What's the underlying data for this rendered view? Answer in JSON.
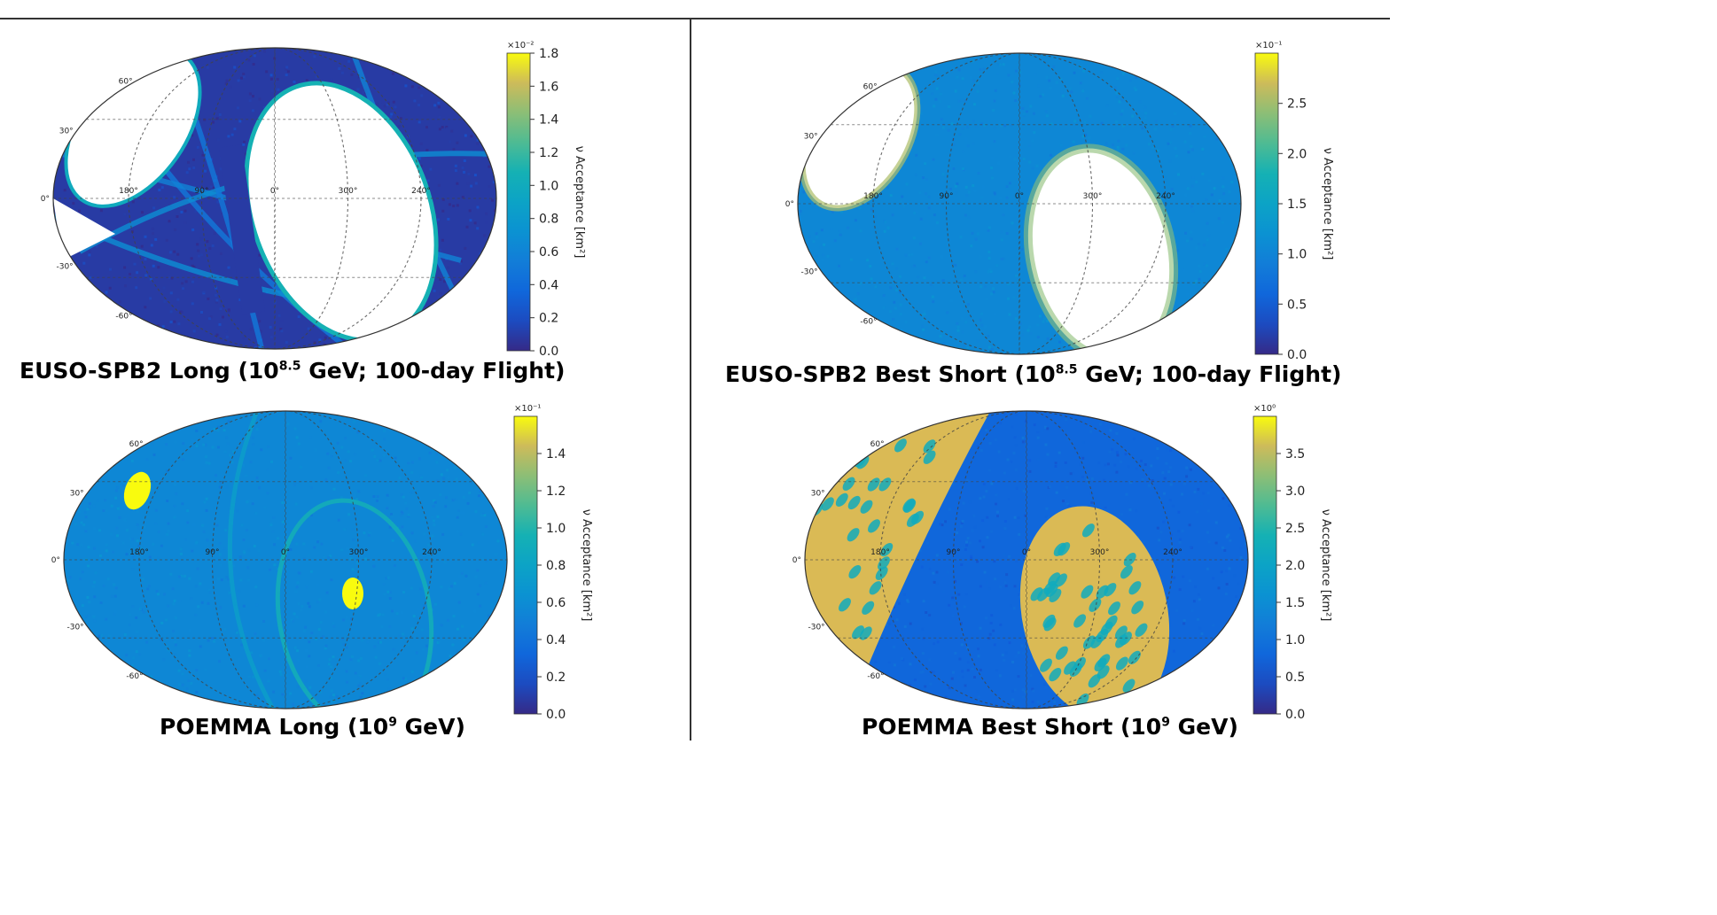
{
  "header": {
    "text": ""
  },
  "chart_data": [
    {
      "type": "heatmap",
      "projection": "mollweide",
      "title": "EUSO-SPB2 Long (10^8.5 GeV; 100-day Flight)",
      "title_parts": {
        "pre": "EUSO-SPB2 Long (10",
        "sup": "8.5",
        "post": " GeV; 100-day Flight)"
      },
      "colorbar": {
        "label": "ν Acceptance [km²]",
        "multiplier": "×10⁻²",
        "range": [
          0,
          1.8
        ],
        "ticks": [
          "0.0",
          "0.2",
          "0.4",
          "0.6",
          "0.8",
          "1.0",
          "1.2",
          "1.4",
          "1.6",
          "1.8"
        ]
      },
      "ra_labels": [
        "180°",
        "90°",
        "0°",
        "300°",
        "240°"
      ],
      "dec_labels": [
        "60°",
        "30°",
        "0°",
        "-30°",
        "-60°"
      ],
      "background_level": 0.05,
      "holes": [
        "upper-left ellipse",
        "large central-right ellipse",
        "left wedge"
      ],
      "grid": true
    },
    {
      "type": "heatmap",
      "projection": "mollweide",
      "title": "EUSO-SPB2 Best Short (10^8.5 GeV; 100-day Flight)",
      "title_parts": {
        "pre": "EUSO-SPB2 Best Short (10",
        "sup": "8.5",
        "post": " GeV; 100-day Flight)"
      },
      "colorbar": {
        "label": "ν Acceptance [km²]",
        "multiplier": "×10⁻¹",
        "range": [
          0,
          3.0
        ],
        "ticks": [
          "0.0",
          "0.5",
          "1.0",
          "1.5",
          "2.0",
          "2.5"
        ]
      },
      "ra_labels": [
        "180°",
        "90°",
        "0°",
        "300°",
        "240°"
      ],
      "dec_labels": [
        "60°",
        "30°",
        "0°",
        "-30°",
        "-60°"
      ],
      "background_level": 0.35,
      "holes": [
        "upper-left ellipse",
        "central-right ellipse"
      ],
      "grid": true
    },
    {
      "type": "heatmap",
      "projection": "mollweide",
      "title": "POEMMA Long (10^9 GeV)",
      "title_parts": {
        "pre": "POEMMA Long (10",
        "sup": "9",
        "post": " GeV)"
      },
      "colorbar": {
        "label": "ν Acceptance [km²]",
        "multiplier": "×10⁻¹",
        "range": [
          0,
          1.6
        ],
        "ticks": [
          "0.0",
          "0.2",
          "0.4",
          "0.6",
          "0.8",
          "1.0",
          "1.2",
          "1.4"
        ]
      },
      "ra_labels": [
        "180°",
        "90°",
        "0°",
        "300°",
        "240°"
      ],
      "dec_labels": [
        "60°",
        "30°",
        "0°",
        "-30°",
        "-60°"
      ],
      "background_level": 0.35,
      "hotspots": [
        "upper-left",
        "lower-center-right"
      ],
      "grid": true
    },
    {
      "type": "heatmap",
      "projection": "mollweide",
      "title": "POEMMA Best Short (10^9 GeV)",
      "title_parts": {
        "pre": "POEMMA Best Short (10",
        "sup": "9",
        "post": " GeV)"
      },
      "colorbar": {
        "label": "ν Acceptance [km²]",
        "multiplier": "×10⁰",
        "range": [
          0,
          4.0
        ],
        "ticks": [
          "0.0",
          "0.5",
          "1.0",
          "1.5",
          "2.0",
          "2.5",
          "3.0",
          "3.5"
        ]
      },
      "ra_labels": [
        "180°",
        "90°",
        "0°",
        "300°",
        "240°"
      ],
      "dec_labels": [
        "60°",
        "30°",
        "0°",
        "-30°",
        "-60°"
      ],
      "background_level": 0.2,
      "bright_regions": [
        "left wedge",
        "center-right ellipse"
      ],
      "grid": true
    }
  ]
}
